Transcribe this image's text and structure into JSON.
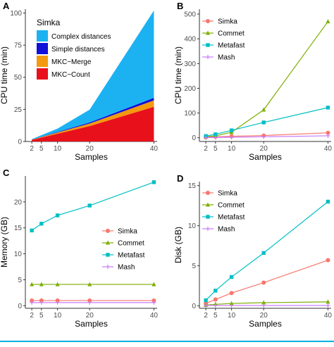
{
  "chart_data": [
    {
      "panel": "A",
      "type": "area",
      "stacked": true,
      "xlabel": "Samples",
      "ylabel": "CPU time (min)",
      "x": [
        2,
        5,
        10,
        20,
        40
      ],
      "xticks": [
        2,
        5,
        10,
        20,
        40
      ],
      "yticks": [
        0,
        25,
        50,
        75,
        100
      ],
      "xlim": [
        0,
        41
      ],
      "ylim": [
        0,
        103
      ],
      "legend": {
        "title": "Simka",
        "placement": "top-left"
      },
      "series": [
        {
          "name": "MKC−Count",
          "color": "#e8111b",
          "values": [
            1.2,
            3,
            6,
            12,
            27
          ]
        },
        {
          "name": "MKC−Merge",
          "color": "#f39a0f",
          "values": [
            0.2,
            0.5,
            1,
            2,
            5
          ]
        },
        {
          "name": "Simple distances",
          "color": "#1010d8",
          "values": [
            0.1,
            0.2,
            0.4,
            0.8,
            2
          ]
        },
        {
          "name": "Complex distances",
          "color": "#1cb2f2",
          "values": [
            0.3,
            1.2,
            2.6,
            10,
            68
          ]
        }
      ],
      "legend_order": [
        "Complex distances",
        "Simple distances",
        "MKC−Merge",
        "MKC−Count"
      ]
    },
    {
      "panel": "B",
      "type": "line",
      "xlabel": "Samples",
      "ylabel": "CPU time (min)",
      "x": [
        2,
        5,
        10,
        20,
        40
      ],
      "xticks": [
        2,
        5,
        10,
        20,
        40
      ],
      "yticks": [
        0,
        100,
        200,
        300,
        400,
        500
      ],
      "xlim": [
        0,
        41
      ],
      "ylim": [
        -15,
        520
      ],
      "legend": {
        "placement": "top-left"
      },
      "series": [
        {
          "name": "Simka",
          "color": "#f8766d",
          "marker": "circle",
          "values": [
            2,
            4,
            6,
            9,
            20
          ]
        },
        {
          "name": "Commet",
          "color": "#7cae00",
          "marker": "triangle",
          "values": [
            4,
            8,
            22,
            113,
            470
          ]
        },
        {
          "name": "Metafast",
          "color": "#00bfc4",
          "marker": "square",
          "values": [
            7,
            14,
            30,
            62,
            122
          ]
        },
        {
          "name": "Mash",
          "color": "#c77cff",
          "marker": "plus",
          "values": [
            0.5,
            1,
            2,
            4,
            8
          ]
        }
      ]
    },
    {
      "panel": "C",
      "type": "line",
      "xlabel": "Samples",
      "ylabel": "Memory (GB)",
      "x": [
        2,
        5,
        10,
        20,
        40
      ],
      "xticks": [
        2,
        5,
        10,
        20,
        40
      ],
      "yticks": [
        0,
        5,
        10,
        15,
        20
      ],
      "xlim": [
        0,
        41
      ],
      "ylim": [
        -0.5,
        25
      ],
      "legend": {
        "placement": "right-middle"
      },
      "series": [
        {
          "name": "Simka",
          "color": "#f8766d",
          "marker": "circle",
          "values": [
            1.0,
            1.0,
            1.0,
            1.0,
            1.0
          ]
        },
        {
          "name": "Commet",
          "color": "#7cae00",
          "marker": "triangle",
          "values": [
            4.1,
            4.1,
            4.1,
            4.1,
            4.1
          ]
        },
        {
          "name": "Metafast",
          "color": "#00bfc4",
          "marker": "square",
          "values": [
            14.5,
            15.8,
            17.4,
            19.3,
            23.8
          ]
        },
        {
          "name": "Mash",
          "color": "#c77cff",
          "marker": "plus",
          "values": [
            0.6,
            0.6,
            0.6,
            0.6,
            0.6
          ]
        }
      ]
    },
    {
      "panel": "D",
      "type": "line",
      "xlabel": "Samples",
      "ylabel": "Disk (GB)",
      "x": [
        2,
        5,
        10,
        20,
        40
      ],
      "xticks": [
        2,
        5,
        10,
        20,
        40
      ],
      "yticks": [
        0,
        5,
        10,
        15
      ],
      "xlim": [
        0,
        41
      ],
      "ylim": [
        -0.3,
        15.5
      ],
      "legend": {
        "placement": "top-left"
      },
      "series": [
        {
          "name": "Simka",
          "color": "#f8766d",
          "marker": "circle",
          "values": [
            0.3,
            0.8,
            1.6,
            2.9,
            5.7
          ]
        },
        {
          "name": "Commet",
          "color": "#7cae00",
          "marker": "triangle",
          "values": [
            0.1,
            0.2,
            0.3,
            0.4,
            0.5
          ]
        },
        {
          "name": "Metafast",
          "color": "#00bfc4",
          "marker": "square",
          "values": [
            0.7,
            1.9,
            3.6,
            6.6,
            13.0
          ]
        },
        {
          "name": "Mash",
          "color": "#c77cff",
          "marker": "plus",
          "values": [
            0.05,
            0.05,
            0.05,
            0.05,
            0.05
          ]
        }
      ]
    }
  ]
}
